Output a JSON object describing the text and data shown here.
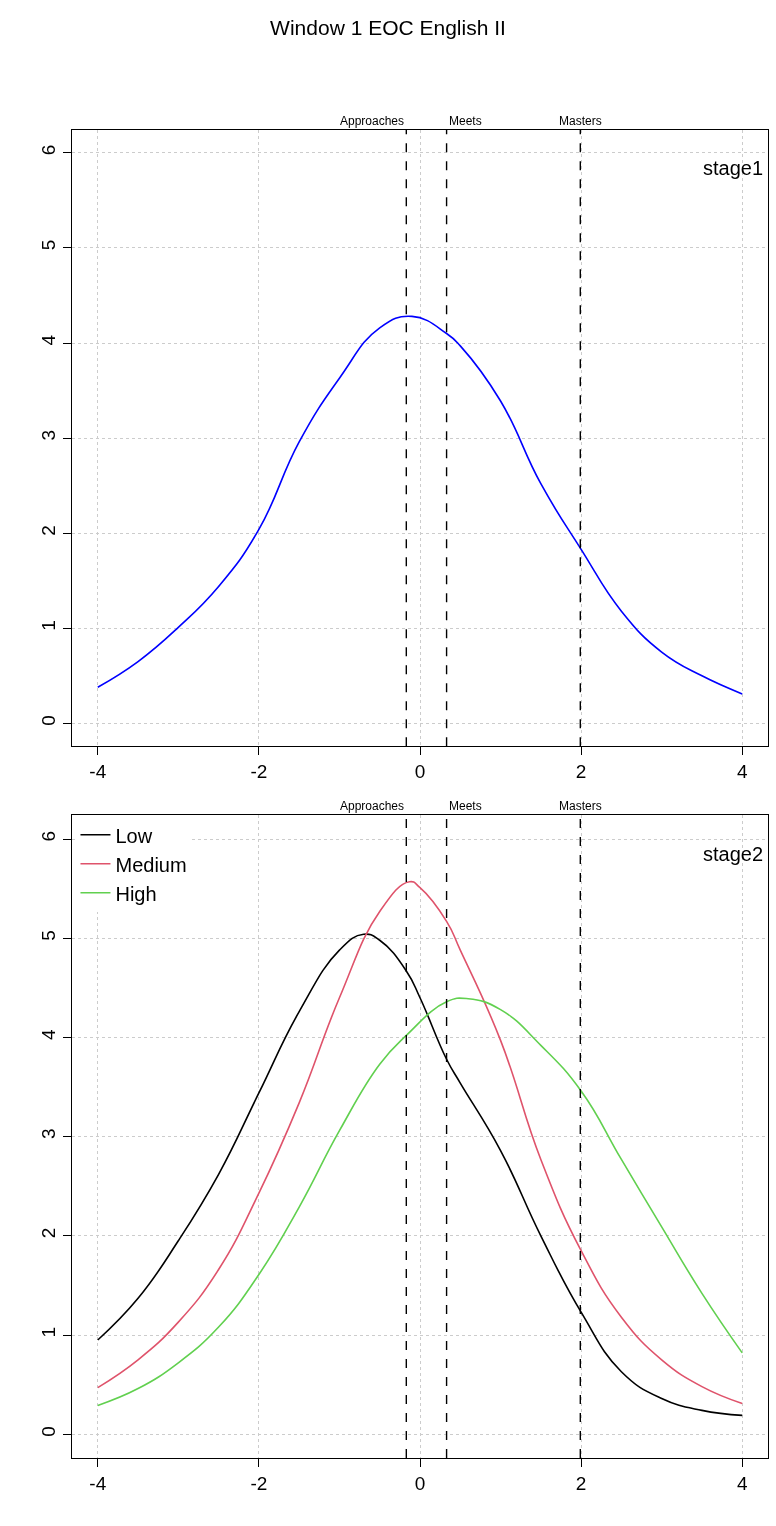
{
  "chart_data": [
    {
      "type": "line",
      "title": "Window 1 EOC English II",
      "annotations": [
        "stage1"
      ],
      "xlim": [
        -4.32,
        4.32
      ],
      "xticks": [
        -4,
        -2,
        0,
        2,
        4
      ],
      "ylim": [
        -0.24,
        6.24
      ],
      "yticks": [
        0,
        1,
        2,
        3,
        4,
        5,
        6
      ],
      "grid": true,
      "legend": false,
      "line_style": "solid",
      "ref_lines": [
        {
          "axis": "x",
          "value": -0.17,
          "label": "Approaches",
          "color": "#000000",
          "line_style": "dashed"
        },
        {
          "axis": "x",
          "value": 0.33,
          "label": "Meets",
          "color": "#000000",
          "line_style": "dashed"
        },
        {
          "axis": "x",
          "value": 1.99,
          "label": "Masters",
          "color": "#000000",
          "line_style": "dashed"
        }
      ],
      "series": [
        {
          "color": "#0000ff",
          "x": [
            -4,
            -3.5,
            -3,
            -2.5,
            -2,
            -1.5,
            -1,
            -0.5,
            -0.1,
            0.33,
            0.5,
            1,
            1.5,
            2,
            2.5,
            3,
            3.5,
            4
          ],
          "values": [
            0.38,
            0.65,
            1.01,
            1.44,
            2.04,
            2.96,
            3.63,
            4.16,
            4.28,
            4.1,
            3.97,
            3.39,
            2.52,
            1.83,
            1.18,
            0.75,
            0.5,
            0.31
          ]
        }
      ]
    },
    {
      "type": "line",
      "annotations": [
        "stage2"
      ],
      "xlim": [
        -4.32,
        4.32
      ],
      "xticks": [
        -4,
        -2,
        0,
        2,
        4
      ],
      "ylim": [
        -0.24,
        6.24
      ],
      "yticks": [
        0,
        1,
        2,
        3,
        4,
        5,
        6
      ],
      "grid": true,
      "legend": "top left",
      "line_style": "solid",
      "ref_lines": [
        {
          "axis": "x",
          "value": -0.17,
          "label": "Approaches",
          "color": "#000000",
          "line_style": "dashed"
        },
        {
          "axis": "x",
          "value": 0.33,
          "label": "Meets",
          "color": "#000000",
          "line_style": "dashed"
        },
        {
          "axis": "x",
          "value": 1.99,
          "label": "Masters",
          "color": "#000000",
          "line_style": "dashed"
        }
      ],
      "series": [
        {
          "name": "Low",
          "color": "#000000",
          "x": [
            -4,
            -3.5,
            -3,
            -2.5,
            -2,
            -1.5,
            -1,
            -0.7,
            -0.5,
            -0.17,
            0,
            0.33,
            0.5,
            1,
            1.5,
            2,
            2.5,
            3,
            3.5,
            4
          ],
          "values": [
            0.95,
            1.37,
            1.95,
            2.62,
            3.44,
            4.26,
            4.88,
            5.04,
            4.98,
            4.67,
            4.4,
            3.78,
            3.54,
            2.86,
            2.0,
            1.23,
            0.63,
            0.36,
            0.24,
            0.19
          ]
        },
        {
          "name": "Medium",
          "color": "#df536b",
          "x": [
            -4,
            -3.5,
            -3,
            -2.5,
            -2,
            -1.5,
            -1,
            -0.5,
            -0.13,
            0,
            0.33,
            0.5,
            1,
            1.5,
            2,
            2.5,
            3,
            3.5,
            4
          ],
          "values": [
            0.47,
            0.75,
            1.13,
            1.66,
            2.43,
            3.34,
            4.4,
            5.27,
            5.57,
            5.51,
            5.17,
            4.88,
            3.97,
            2.77,
            1.85,
            1.18,
            0.75,
            0.48,
            0.31
          ]
        },
        {
          "name": "High",
          "color": "#61d04f",
          "x": [
            -4,
            -3.5,
            -3,
            -2.5,
            -2,
            -1.5,
            -1,
            -0.5,
            -0.17,
            0.33,
            0.6,
            1,
            1.5,
            2,
            2.5,
            3,
            3.5,
            4
          ],
          "values": [
            0.29,
            0.46,
            0.72,
            1.08,
            1.61,
            2.29,
            3.06,
            3.73,
            4.02,
            4.36,
            4.39,
            4.28,
            3.92,
            3.46,
            2.77,
            2.09,
            1.42,
            0.82
          ]
        }
      ]
    }
  ]
}
